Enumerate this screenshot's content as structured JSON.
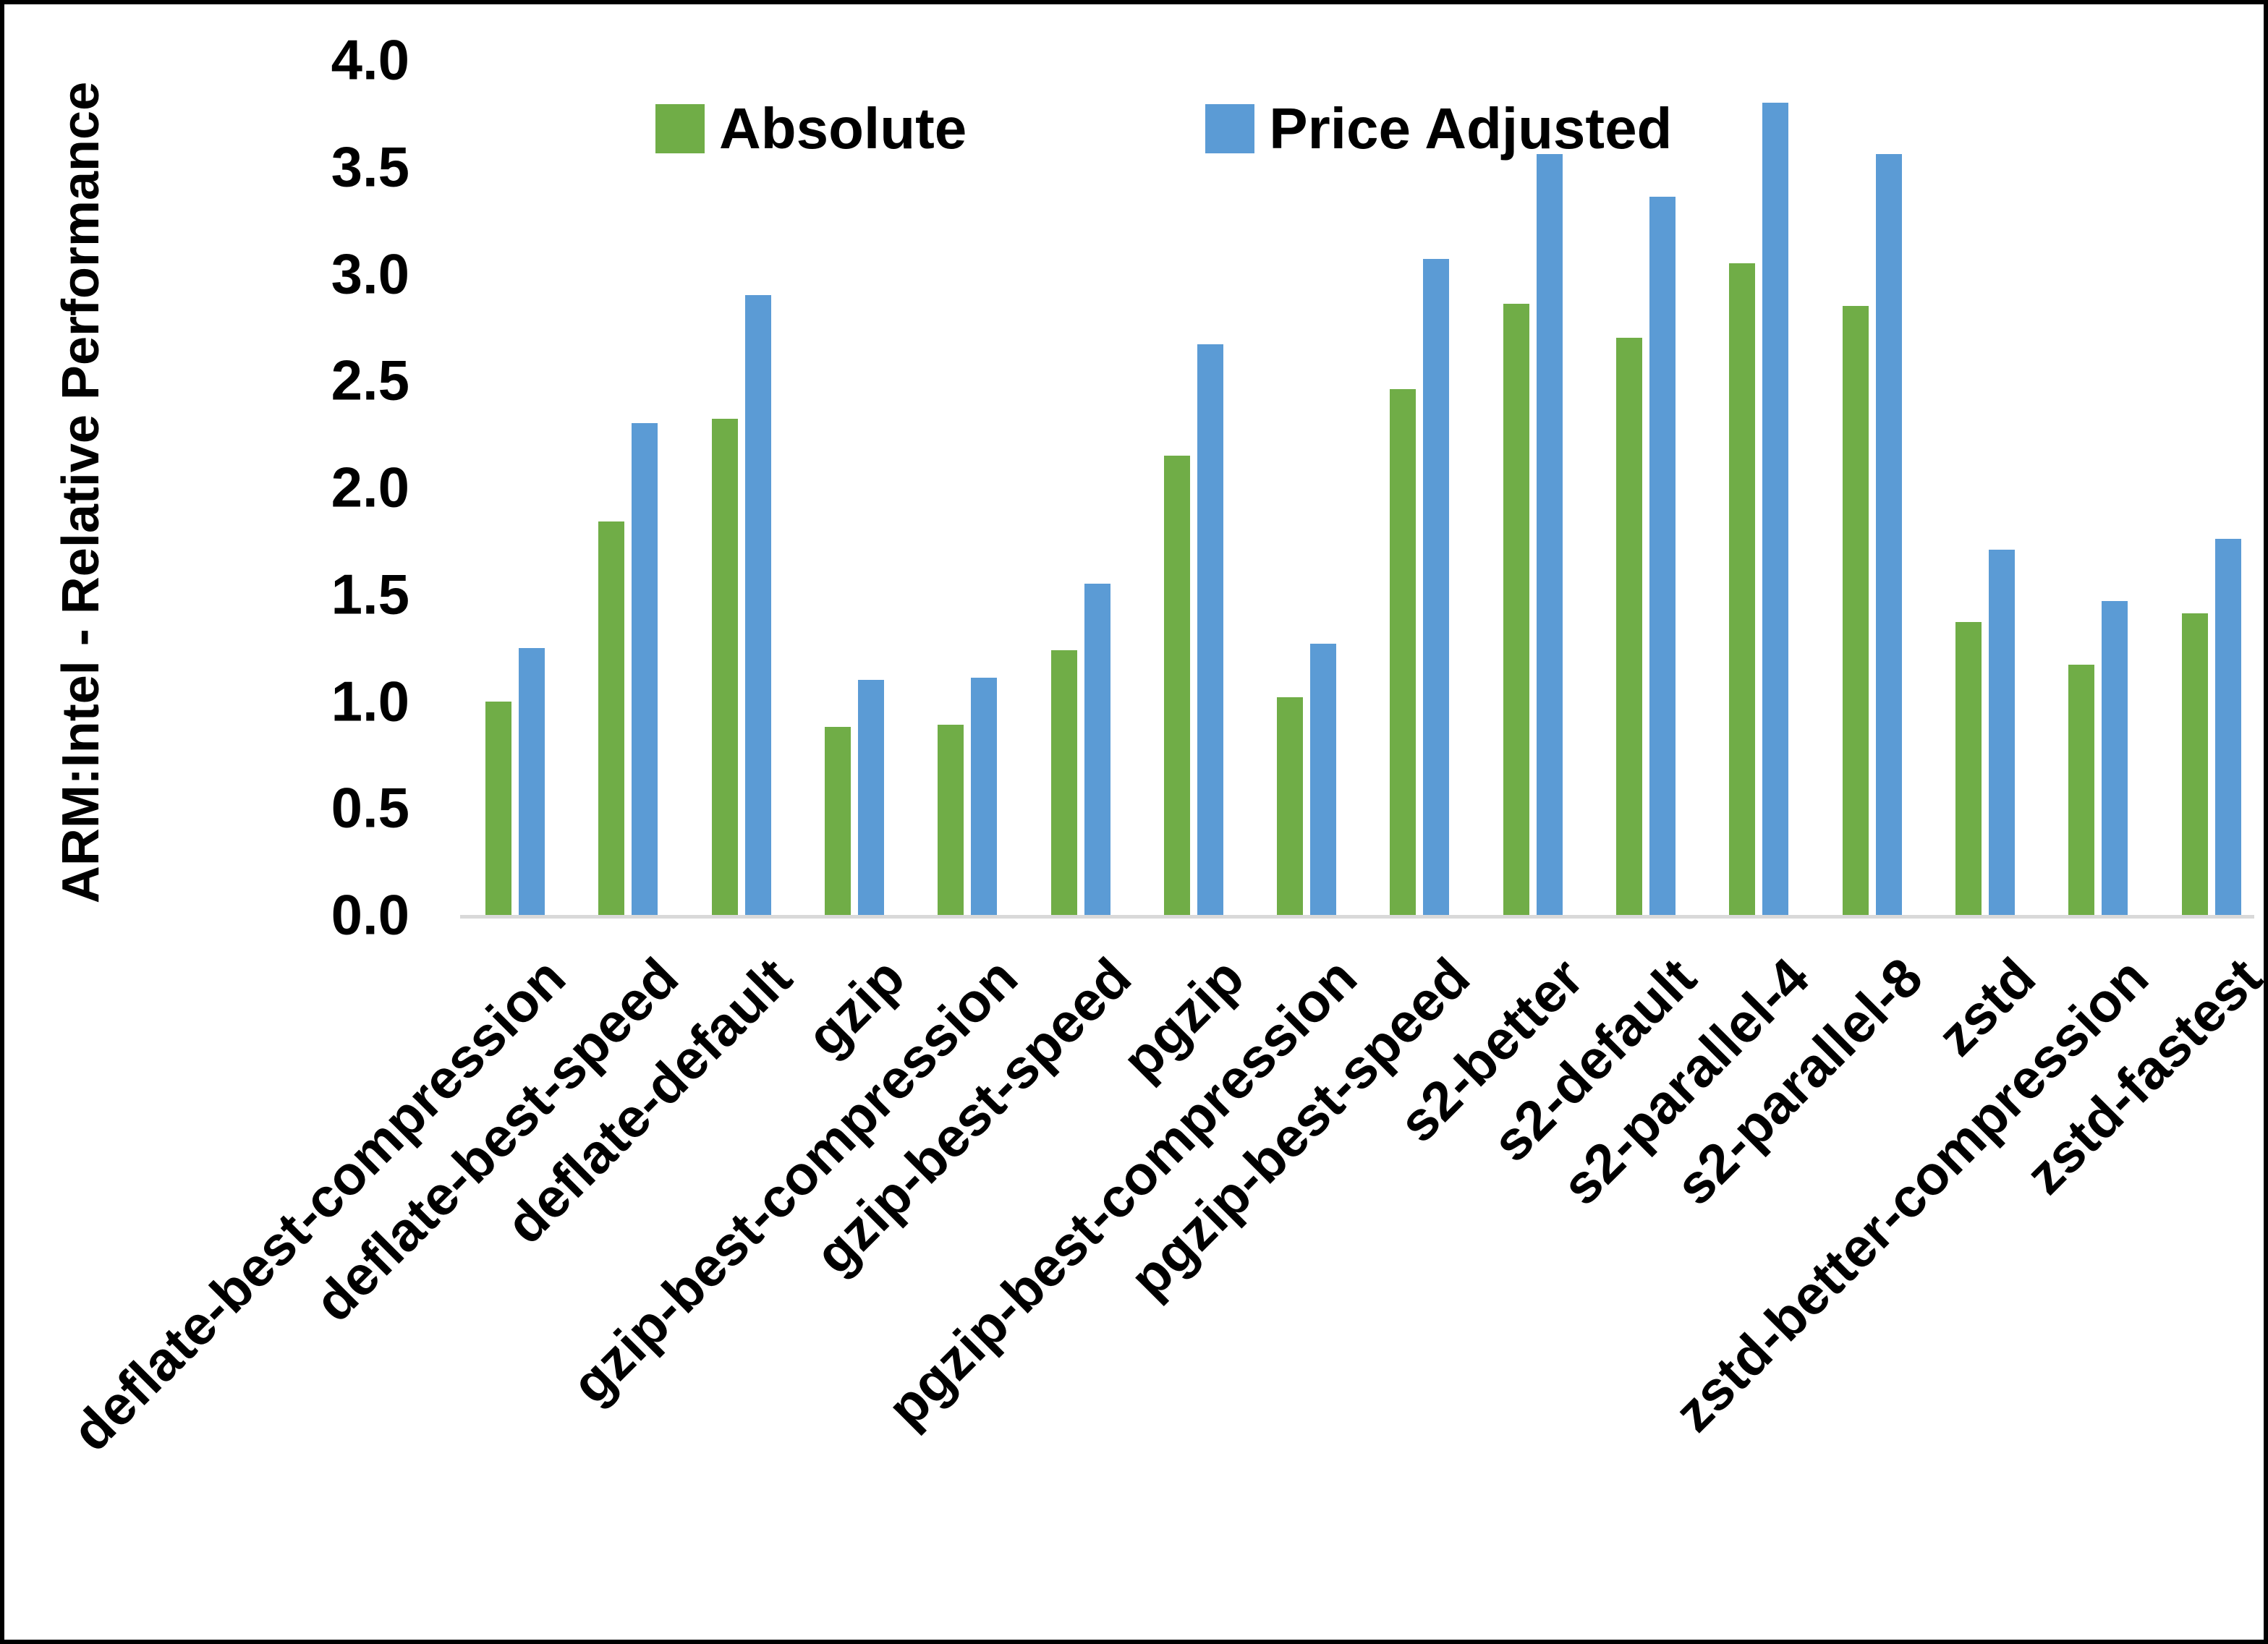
{
  "chart_data": {
    "type": "bar",
    "title": "",
    "xlabel": "",
    "ylabel": "ARM:Intel - Relative Performance",
    "ylim": [
      0.0,
      4.0
    ],
    "ytick_step": 0.5,
    "yticks": [
      "0.0",
      "0.5",
      "1.0",
      "1.5",
      "2.0",
      "2.5",
      "3.0",
      "3.5",
      "4.0"
    ],
    "grid": false,
    "legend_position": "top-center",
    "categories": [
      "deflate-best-compression",
      "deflate-best-speed",
      "deflate-default",
      "gzip",
      "gzip-best-compression",
      "gzip-best-speed",
      "pgzip",
      "pgzip-best-compression",
      "pgzip-best-speed",
      "s2-better",
      "s2-default",
      "s2-parallel-4",
      "s2-parallel-8",
      "zstd",
      "zstd-better-compression",
      "zstd-fastest"
    ],
    "series": [
      {
        "name": "Absolute",
        "color": "#70AD47",
        "values": [
          1.0,
          1.84,
          2.32,
          0.88,
          0.89,
          1.24,
          2.15,
          1.02,
          2.46,
          2.86,
          2.7,
          3.05,
          2.85,
          1.37,
          1.17,
          1.41
        ]
      },
      {
        "name": "Price Adjusted",
        "color": "#5B9BD5",
        "values": [
          1.25,
          2.3,
          2.9,
          1.1,
          1.11,
          1.55,
          2.67,
          1.27,
          3.07,
          3.56,
          3.36,
          3.8,
          3.56,
          1.71,
          1.47,
          1.76
        ]
      }
    ]
  },
  "colors": {
    "background": "#ffffff",
    "frame": "#000000",
    "axis_line": "#d9d9d9",
    "text": "#000000"
  }
}
